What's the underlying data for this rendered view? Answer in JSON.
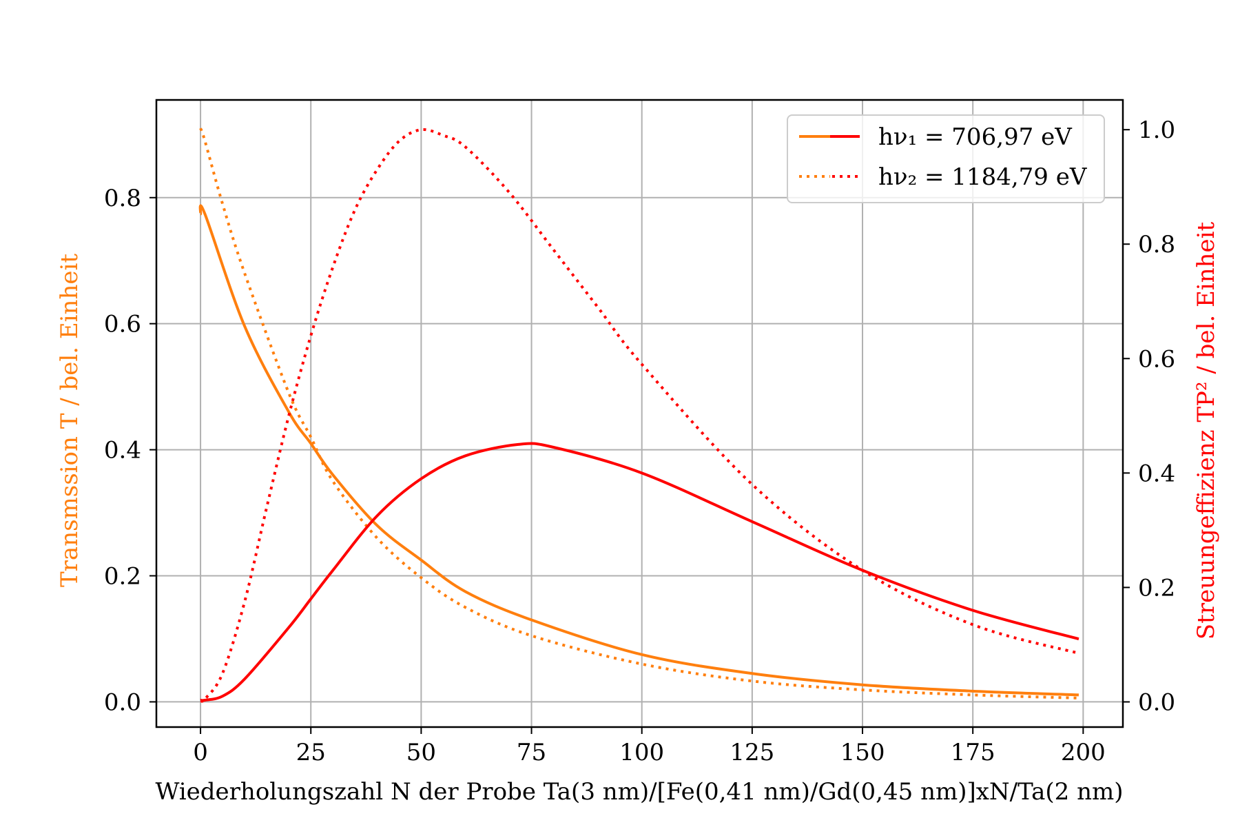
{
  "chart_data": {
    "type": "line",
    "xlabel": "Wiederholungszahl N der Probe Ta(3 nm)/[Fe(0,41 nm)/Gd(0,45 nm)]xN/Ta(2 nm)",
    "ylabel_left": "Transmssion T / bel. Einheit",
    "ylabel_right": "Streuungeffizienz TP² / bel. Einheit",
    "xlim": [
      -10,
      209
    ],
    "ylim_left": [
      -0.04,
      0.955
    ],
    "ylim_right": [
      -0.044,
      1.052
    ],
    "xticks": [
      "0",
      "25",
      "50",
      "75",
      "100",
      "125",
      "150",
      "175",
      "200"
    ],
    "yticks_left": [
      "0.0",
      "0.2",
      "0.4",
      "0.6",
      "0.8"
    ],
    "yticks_right": [
      "0.0",
      "0.2",
      "0.4",
      "0.6",
      "0.8",
      "1.0"
    ],
    "grid": true,
    "legend_position": "top-right",
    "legend": [
      {
        "label": "hν₁ = 706,97 eV",
        "style": "solid"
      },
      {
        "label": "hν₂ = 1184,79 eV",
        "style": "dotted"
      }
    ],
    "colors": {
      "transmission": "#ff7f0e",
      "efficiency": "#ff0000"
    },
    "series": [
      {
        "name": "hν₁ = 706,97 eV",
        "quantity": "Transmission T",
        "axis": "left",
        "style": "solid",
        "color": "#ff7f0e",
        "x": [
          0,
          1,
          10,
          20,
          25,
          30,
          40,
          50,
          60,
          75,
          100,
          125,
          150,
          175,
          199
        ],
        "y": [
          0.774,
          0.774,
          0.596,
          0.46,
          0.41,
          0.36,
          0.28,
          0.225,
          0.175,
          0.13,
          0.075,
          0.045,
          0.027,
          0.017,
          0.011
        ]
      },
      {
        "name": "hν₂ = 1184,79 eV",
        "quantity": "Transmission T",
        "axis": "left",
        "style": "dotted",
        "color": "#ff7f0e",
        "x": [
          0,
          1,
          5,
          10,
          20,
          25,
          30,
          40,
          50,
          60,
          75,
          100,
          125,
          150,
          175,
          199
        ],
        "y": [
          0.91,
          0.89,
          0.79,
          0.68,
          0.49,
          0.42,
          0.35,
          0.26,
          0.197,
          0.15,
          0.105,
          0.06,
          0.033,
          0.019,
          0.011,
          0.006
        ]
      },
      {
        "name": "hν₁ = 706,97 eV",
        "quantity": "Streuungeffizienz TP²",
        "axis": "right",
        "style": "solid",
        "color": "#ff0000",
        "x": [
          0,
          1,
          5,
          10,
          20,
          25,
          30,
          40,
          50,
          60,
          72,
          80,
          100,
          125,
          150,
          175,
          199
        ],
        "y": [
          0.003,
          0.003,
          0.01,
          0.04,
          0.13,
          0.18,
          0.23,
          0.325,
          0.39,
          0.43,
          0.45,
          0.445,
          0.4,
          0.315,
          0.23,
          0.16,
          0.11
        ]
      },
      {
        "name": "hν₂ = 1184,79 eV",
        "quantity": "Streuungeffizienz TP²",
        "axis": "right",
        "style": "dotted",
        "color": "#ff0000",
        "x": [
          0,
          1,
          5,
          10,
          15,
          20,
          25,
          30,
          35,
          40,
          45,
          50,
          55,
          60,
          70,
          80,
          90,
          100,
          125,
          150,
          175,
          199
        ],
        "y": [
          0.003,
          0.005,
          0.05,
          0.175,
          0.34,
          0.5,
          0.64,
          0.76,
          0.86,
          0.93,
          0.98,
          1.0,
          0.99,
          0.97,
          0.89,
          0.79,
          0.69,
          0.59,
          0.38,
          0.23,
          0.135,
          0.085
        ]
      }
    ]
  }
}
